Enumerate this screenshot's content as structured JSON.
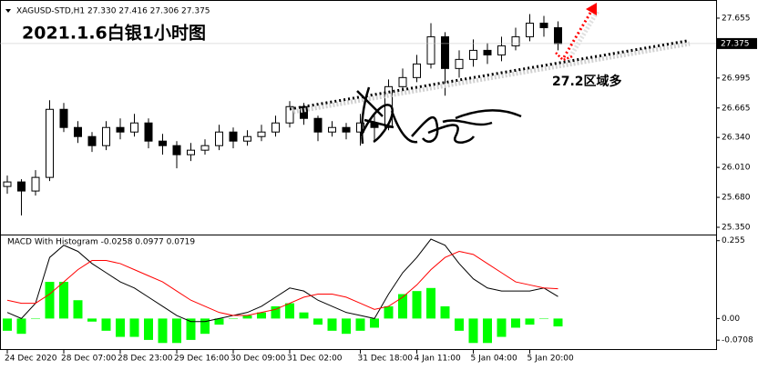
{
  "chart_data": [
    {
      "type": "candlestick",
      "header": "XAGUSD-STD,H1  27.330 27.416 27.306 27.375",
      "title": "2021.1.6白银1小时图",
      "annotation": "27.2区域多",
      "categories": [
        "24 Dec 2020",
        null,
        null,
        null,
        "28 Dec 07:00",
        null,
        null,
        null,
        "28 Dec 23:00",
        null,
        null,
        null,
        "29 Dec 16:00",
        null,
        null,
        null,
        "30 Dec 09:00",
        null,
        null,
        null,
        "31 Dec 02:00",
        null,
        null,
        null,
        null,
        "31 Dec 18:00",
        null,
        null,
        null,
        "4 Jan 11:00",
        null,
        null,
        null,
        "5 Jan 04:00",
        null,
        null,
        null,
        "5 Jan 20:00",
        null,
        null
      ],
      "open": [
        25.8,
        25.85,
        25.75,
        25.9,
        26.65,
        26.45,
        26.35,
        26.25,
        26.45,
        26.4,
        26.5,
        26.3,
        26.25,
        26.15,
        26.2,
        26.25,
        26.4,
        26.3,
        26.35,
        26.4,
        26.5,
        26.68,
        26.55,
        26.4,
        26.45,
        26.4,
        26.5,
        26.45,
        26.9,
        27.0,
        27.15,
        27.45,
        27.1,
        27.2,
        27.3,
        27.25,
        27.35,
        27.45,
        27.6,
        27.55
      ],
      "high": [
        25.92,
        25.88,
        25.98,
        26.75,
        26.72,
        26.52,
        26.4,
        26.52,
        26.55,
        26.6,
        26.55,
        26.38,
        26.3,
        26.28,
        26.32,
        26.48,
        26.45,
        26.42,
        26.48,
        26.58,
        26.74,
        26.72,
        26.58,
        26.52,
        26.5,
        26.6,
        26.58,
        26.98,
        27.1,
        27.25,
        27.6,
        27.5,
        27.3,
        27.42,
        27.38,
        27.45,
        27.55,
        27.7,
        27.68,
        27.62
      ],
      "low": [
        25.72,
        25.48,
        25.7,
        25.86,
        26.4,
        26.28,
        26.18,
        26.2,
        26.32,
        26.35,
        26.22,
        26.15,
        26.0,
        26.08,
        26.15,
        26.2,
        26.22,
        26.25,
        26.3,
        26.35,
        26.45,
        26.48,
        26.3,
        26.35,
        26.32,
        26.25,
        26.3,
        26.42,
        26.85,
        26.95,
        27.1,
        26.8,
        27.0,
        27.12,
        27.15,
        27.18,
        27.3,
        27.4,
        27.45,
        27.3
      ],
      "close": [
        25.85,
        25.75,
        25.9,
        26.65,
        26.45,
        26.35,
        26.25,
        26.45,
        26.4,
        26.5,
        26.3,
        26.25,
        26.15,
        26.2,
        26.25,
        26.4,
        26.3,
        26.35,
        26.4,
        26.5,
        26.68,
        26.55,
        26.4,
        26.45,
        26.4,
        26.5,
        26.45,
        26.9,
        27.0,
        27.15,
        27.45,
        27.1,
        27.2,
        27.3,
        27.25,
        27.35,
        27.45,
        27.6,
        27.55,
        27.375
      ],
      "up_color": "#ffffff",
      "down_color": "#000000",
      "edge_color": "#000000",
      "ylim": [
        25.27,
        27.855
      ],
      "yticks": [
        {
          "value": 25.35,
          "label": "25.350"
        },
        {
          "value": 25.68,
          "label": "25.680"
        },
        {
          "value": 26.01,
          "label": "26.010"
        },
        {
          "value": 26.34,
          "label": "26.340"
        },
        {
          "value": 26.665,
          "label": "26.665"
        },
        {
          "value": 26.995,
          "label": "26.995"
        },
        {
          "value": 27.655,
          "label": "27.655"
        }
      ]
    },
    {
      "type": "bar",
      "header": "MACD With Histogram -0.0258 0.0977 0.0719",
      "color": "#00ff00",
      "values": [
        -0.04,
        -0.05,
        0.0,
        0.12,
        0.12,
        0.06,
        -0.01,
        -0.04,
        -0.06,
        -0.06,
        -0.07,
        -0.08,
        -0.08,
        -0.07,
        -0.05,
        -0.02,
        0.0,
        0.01,
        0.02,
        0.04,
        0.05,
        0.02,
        -0.02,
        -0.04,
        -0.05,
        -0.04,
        -0.03,
        0.04,
        0.08,
        0.09,
        0.1,
        0.04,
        -0.04,
        -0.08,
        -0.08,
        -0.06,
        -0.03,
        -0.02,
        0.0,
        -0.0258
      ],
      "lines": [
        {
          "color": "#000000",
          "values": [
            0.02,
            0.0,
            0.05,
            0.2,
            0.24,
            0.22,
            0.18,
            0.15,
            0.12,
            0.1,
            0.07,
            0.04,
            0.01,
            -0.01,
            -0.01,
            0.0,
            0.01,
            0.02,
            0.04,
            0.07,
            0.1,
            0.09,
            0.06,
            0.04,
            0.02,
            0.01,
            0.0,
            0.08,
            0.15,
            0.2,
            0.26,
            0.24,
            0.18,
            0.13,
            0.1,
            0.09,
            0.09,
            0.09,
            0.1,
            0.0719
          ]
        },
        {
          "color": "#ff0000",
          "values": [
            0.06,
            0.05,
            0.05,
            0.08,
            0.12,
            0.16,
            0.19,
            0.19,
            0.18,
            0.16,
            0.14,
            0.12,
            0.09,
            0.06,
            0.04,
            0.02,
            0.01,
            0.01,
            0.02,
            0.03,
            0.05,
            0.07,
            0.08,
            0.08,
            0.07,
            0.05,
            0.03,
            0.04,
            0.07,
            0.11,
            0.16,
            0.2,
            0.22,
            0.21,
            0.18,
            0.15,
            0.12,
            0.11,
            0.1,
            0.0977
          ]
        }
      ],
      "ylim": [
        -0.103,
        0.275
      ],
      "yticks": [
        0.255,
        {
          "value": 0.0,
          "label": "0.00"
        },
        -0.0708
      ]
    }
  ]
}
